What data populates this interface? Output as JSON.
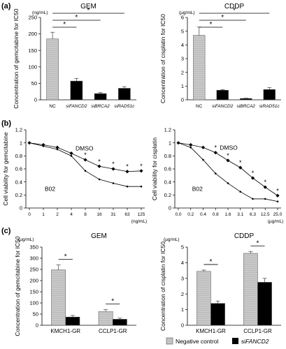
{
  "panel_labels": [
    "(a)",
    "(b)",
    "(c)"
  ],
  "legend": {
    "negative_control": "Negative control",
    "sifancd2_prefix": "si",
    "sifancd2_gene": "FANCD2"
  },
  "chart_data": [
    {
      "id": "a_gem",
      "type": "bar",
      "title": "GEM",
      "unit": "(ng/mL)",
      "ylabel": "Concentration of gemcitabine for IC50",
      "ylim": [
        0,
        250
      ],
      "yticks": [
        0,
        50,
        100,
        150,
        200,
        250
      ],
      "categories": [
        "NC",
        "siFANCD2",
        "siBRCA2",
        "siRAD51c"
      ],
      "cat_prefix": [
        "",
        "si",
        "si",
        "si"
      ],
      "cat_gene": [
        "NC",
        "FANCD2",
        "BRCA2",
        "RAD51c"
      ],
      "values": [
        185,
        57,
        19,
        35
      ],
      "errors": [
        20,
        8,
        3,
        5
      ],
      "fills": [
        "pattern",
        "black",
        "black",
        "black"
      ],
      "signif": [
        {
          "from": 0,
          "to": 1,
          "label": "*"
        },
        {
          "from": 0,
          "to": 2,
          "label": "*"
        },
        {
          "from": 0,
          "to": 3,
          "label": "*"
        }
      ]
    },
    {
      "id": "a_cddp",
      "type": "bar",
      "title": "CDDP",
      "unit": "(μg/mL)",
      "ylabel": "Concentration of cisplatin for IC50",
      "ylim": [
        0,
        6
      ],
      "yticks": [
        0,
        1,
        2,
        3,
        4,
        5,
        6
      ],
      "categories": [
        "NC",
        "siFANCD2",
        "siBRCA2",
        "siRAD51c"
      ],
      "cat_prefix": [
        "",
        "si",
        "si",
        "si"
      ],
      "cat_gene": [
        "NC",
        "FANCD2",
        "BRCA2",
        "RAD51c"
      ],
      "values": [
        4.7,
        0.7,
        0.1,
        0.75
      ],
      "errors": [
        0.6,
        0.05,
        0.02,
        0.15
      ],
      "fills": [
        "pattern",
        "black",
        "black",
        "black"
      ],
      "signif": [
        {
          "from": 0,
          "to": 1,
          "label": "*"
        },
        {
          "from": 0,
          "to": 2,
          "label": "*"
        },
        {
          "from": 0,
          "to": 3,
          "label": "*"
        }
      ]
    },
    {
      "id": "b_gem",
      "type": "line",
      "ylabel": "Cell viability for gemcitabine",
      "x": [
        "0",
        "1",
        "2",
        "4",
        "8",
        "16",
        "31",
        "63",
        "125"
      ],
      "xunit": "(ng/mL)",
      "ylim": [
        0,
        1.2
      ],
      "yticks": [
        0,
        0.2,
        0.4,
        0.6,
        0.8,
        1,
        1.2
      ],
      "series": [
        {
          "name": "DMSO",
          "values": [
            1,
            0.97,
            0.93,
            0.84,
            0.74,
            0.64,
            0.6,
            0.56,
            0.57
          ],
          "marker": "diamond"
        },
        {
          "name": "B02",
          "values": [
            1,
            0.95,
            0.9,
            0.8,
            0.57,
            0.44,
            0.38,
            0.33,
            0.33
          ],
          "marker": "dot"
        }
      ],
      "stars_x": [
        4,
        5,
        6,
        7,
        8
      ],
      "star_label": "*"
    },
    {
      "id": "b_cddp",
      "type": "line",
      "ylabel": "Cell viability for cisplatin",
      "x": [
        "0.0",
        "0.2",
        "0.4",
        "0.8",
        "1.6",
        "3.1",
        "6.3",
        "12.5",
        "25.0"
      ],
      "xunit": "(μg/mL)",
      "ylim": [
        0,
        1.2
      ],
      "yticks": [
        0,
        0.2,
        0.4,
        0.6,
        0.8,
        1,
        1.2
      ],
      "series": [
        {
          "name": "DMSO",
          "values": [
            1,
            0.97,
            0.93,
            0.85,
            0.73,
            0.62,
            0.46,
            0.32,
            0.19
          ],
          "marker": "diamond"
        },
        {
          "name": "B02",
          "values": [
            1,
            0.93,
            0.74,
            0.53,
            0.38,
            0.25,
            0.14,
            0.14,
            0.1
          ],
          "marker": "dot"
        }
      ],
      "stars_x": [
        3,
        4,
        5,
        6,
        7,
        8
      ],
      "star_label": "*"
    },
    {
      "id": "c_gem",
      "type": "bar",
      "title": "GEM",
      "unit": "(μg/mL)",
      "ylabel": "Concentration of gemcitabine for IC50",
      "ylim": [
        0,
        350
      ],
      "yticks": [
        0,
        50,
        100,
        150,
        200,
        250,
        300,
        350
      ],
      "categories": [
        "KMCH1-GR",
        "CCLP1-GR"
      ],
      "series": [
        {
          "name": "Negative control",
          "values": [
            248,
            62
          ],
          "errors": [
            22,
            8
          ],
          "fill": "pattern"
        },
        {
          "name": "siFANCD2",
          "values": [
            37,
            27
          ],
          "errors": [
            7,
            5
          ],
          "fill": "black"
        }
      ],
      "signif_label": "*"
    },
    {
      "id": "c_cddp",
      "type": "bar",
      "title": "CDDP",
      "unit": "(μg/mL)",
      "ylabel": "Concentration of cisplatin for IC50",
      "ylim": [
        0,
        5
      ],
      "yticks": [
        0,
        1,
        2,
        3,
        4,
        5
      ],
      "categories": [
        "KMCH1-GR",
        "CCLP1-GR"
      ],
      "series": [
        {
          "name": "Negative control",
          "values": [
            3.45,
            4.6
          ],
          "errors": [
            0.08,
            0.12
          ],
          "fill": "pattern"
        },
        {
          "name": "siFANCD2",
          "values": [
            1.4,
            2.75
          ],
          "errors": [
            0.15,
            0.25
          ],
          "fill": "black"
        }
      ],
      "signif_label": "*"
    }
  ]
}
